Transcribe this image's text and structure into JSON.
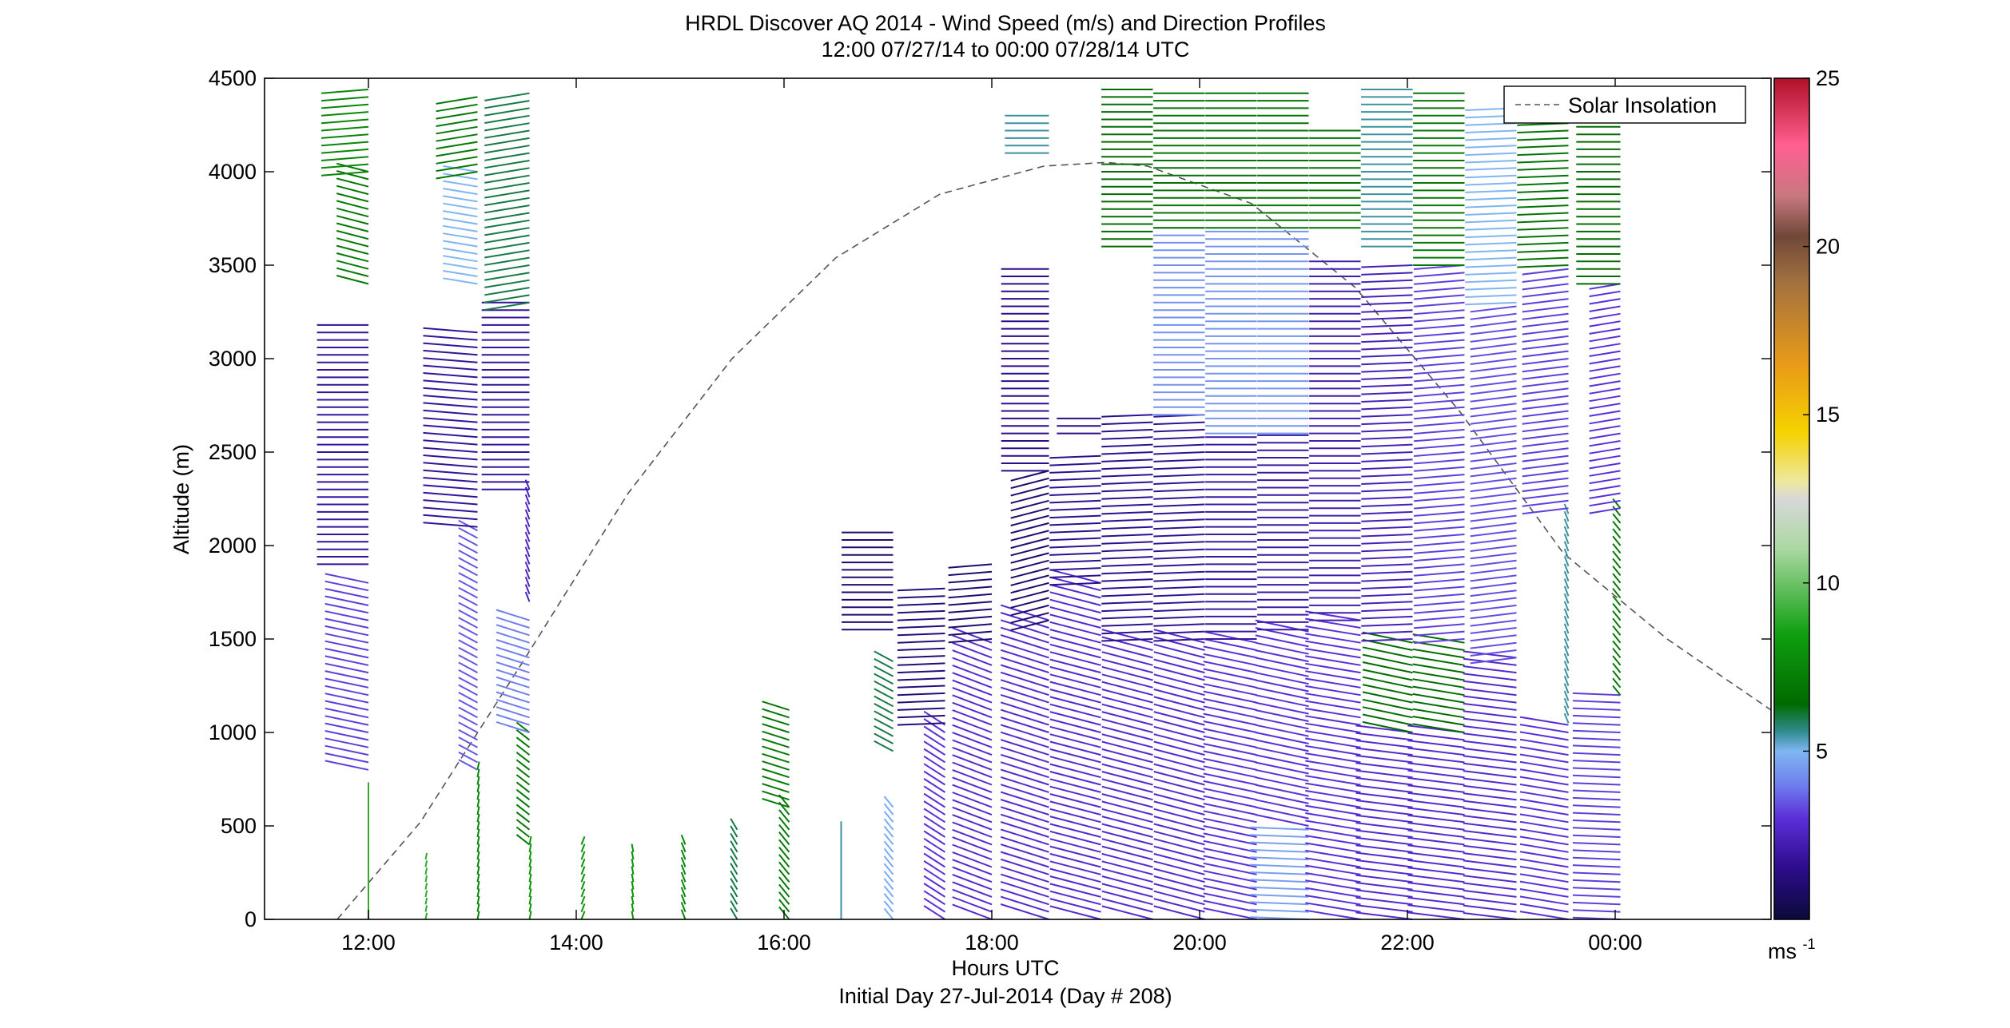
{
  "chart_data": {
    "type": "wind-barb-profile",
    "title": "HRDL Discover AQ 2014 - Wind Speed (m/s) and Direction Profiles",
    "subtitle": "12:00 07/27/14 to 00:00 07/28/14  UTC",
    "xlabel": "Hours UTC",
    "xlabel2": "Initial Day 27-Jul-2014 (Day # 208)",
    "ylabel": "Altitude (m)",
    "xlim_hours": [
      11,
      25.5
    ],
    "ylim": [
      0,
      4500
    ],
    "x_ticks": [
      {
        "hour": 12,
        "label": "12:00"
      },
      {
        "hour": 14,
        "label": "14:00"
      },
      {
        "hour": 16,
        "label": "16:00"
      },
      {
        "hour": 18,
        "label": "18:00"
      },
      {
        "hour": 20,
        "label": "20:00"
      },
      {
        "hour": 22,
        "label": "22:00"
      },
      {
        "hour": 24,
        "label": "00:00"
      }
    ],
    "y_ticks": [
      {
        "value": 0,
        "label": "0"
      },
      {
        "value": 500,
        "label": "500"
      },
      {
        "value": 1000,
        "label": "1000"
      },
      {
        "value": 1500,
        "label": "1500"
      },
      {
        "value": 2000,
        "label": "2000"
      },
      {
        "value": 2500,
        "label": "2500"
      },
      {
        "value": 3000,
        "label": "3000"
      },
      {
        "value": 3500,
        "label": "3500"
      },
      {
        "value": 4000,
        "label": "4000"
      },
      {
        "value": 4500,
        "label": "4500"
      }
    ],
    "legend": {
      "entry": "Solar Insolation",
      "position": "top-right",
      "style": "dashed"
    },
    "colorbar": {
      "unit_base": "ms",
      "unit_exp": "-1",
      "range": [
        0,
        25
      ],
      "tick_values": [
        5,
        10,
        15,
        20,
        25
      ],
      "tick_labels": [
        "5",
        "10",
        "15",
        "20",
        "25"
      ],
      "colors": [
        {
          "v": 0,
          "c": "#0b0a3a"
        },
        {
          "v": 1.5,
          "c": "#2c0c8a"
        },
        {
          "v": 3,
          "c": "#5b2ed8"
        },
        {
          "v": 4,
          "c": "#6f7fee"
        },
        {
          "v": 5,
          "c": "#7fb6f2"
        },
        {
          "v": 5.6,
          "c": "#2e8a8c"
        },
        {
          "v": 6.4,
          "c": "#006a00"
        },
        {
          "v": 8.5,
          "c": "#10a010"
        },
        {
          "v": 11,
          "c": "#aad8a2"
        },
        {
          "v": 12.5,
          "c": "#d8d8d8"
        },
        {
          "v": 13,
          "c": "#eee8a0"
        },
        {
          "v": 14.5,
          "c": "#f5d200"
        },
        {
          "v": 16.5,
          "c": "#e89a18"
        },
        {
          "v": 19,
          "c": "#a07040"
        },
        {
          "v": 20.3,
          "c": "#704838"
        },
        {
          "v": 21.5,
          "c": "#c87880"
        },
        {
          "v": 23,
          "c": "#ff6090"
        },
        {
          "v": 25,
          "c": "#b01028"
        }
      ]
    },
    "solar_insolation": {
      "x_hours": [
        11.7,
        12.5,
        13.5,
        14.5,
        15.5,
        16.5,
        17.5,
        18.5,
        19.1,
        19.5,
        20.5,
        21.5,
        22.5,
        23.5,
        24.5,
        25.5
      ],
      "y": [
        0,
        520,
        1390,
        2280,
        3000,
        3540,
        3880,
        4030,
        4050,
        4030,
        3830,
        3380,
        2720,
        1960,
        1500,
        1120
      ]
    },
    "profile_columns": [
      {
        "hour": 12.0,
        "segments": [
          {
            "z0": 0,
            "z1": 700,
            "speed": 9,
            "dir": 180,
            "len": 0.6
          },
          {
            "z0": 800,
            "z1": 1800,
            "speed": 3.2,
            "dir": 245,
            "len": 1.3
          },
          {
            "z0": 1900,
            "z1": 3200,
            "speed": 1.8,
            "dir": 270,
            "len": 1.4
          },
          {
            "z0": 3400,
            "z1": 4000,
            "speed": 7,
            "dir": 240,
            "len": 1.0
          },
          {
            "z0": 4000,
            "z1": 4450,
            "speed": 7.5,
            "dir": 280,
            "len": 1.3
          }
        ]
      },
      {
        "hour": 12.55,
        "segments": [
          {
            "z0": 0,
            "z1": 350,
            "speed": 9,
            "dir": 175,
            "len": 0.4
          }
        ]
      },
      {
        "hour": 13.05,
        "segments": [
          {
            "z0": 0,
            "z1": 800,
            "speed": 7.5,
            "dir": 175,
            "len": 0.5
          },
          {
            "z0": 800,
            "z1": 2100,
            "speed": 3.5,
            "dir": 220,
            "len": 0.8
          },
          {
            "z0": 2100,
            "z1": 3150,
            "speed": 1.8,
            "dir": 260,
            "len": 1.5
          },
          {
            "z0": 3400,
            "z1": 4000,
            "speed": 5,
            "dir": 250,
            "len": 1.0
          },
          {
            "z0": 4000,
            "z1": 4400,
            "speed": 7,
            "dir": 290,
            "len": 1.2
          }
        ]
      },
      {
        "hour": 13.55,
        "segments": [
          {
            "z0": 0,
            "z1": 400,
            "speed": 8,
            "dir": 175,
            "len": 0.5
          },
          {
            "z0": 400,
            "z1": 1000,
            "speed": 7,
            "dir": 210,
            "len": 0.7
          },
          {
            "z0": 1000,
            "z1": 1600,
            "speed": 4,
            "dir": 235,
            "len": 1.1
          },
          {
            "z0": 1700,
            "z1": 2300,
            "speed": 2.5,
            "dir": 190,
            "len": 0.6
          },
          {
            "z0": 2300,
            "z1": 3300,
            "speed": 1.8,
            "dir": 270,
            "len": 1.3
          },
          {
            "z0": 3300,
            "z1": 4450,
            "speed": 6,
            "dir": 290,
            "len": 1.3
          }
        ]
      },
      {
        "hour": 14.05,
        "segments": [
          {
            "z0": 0,
            "z1": 420,
            "speed": 8,
            "dir": 170,
            "len": 0.5
          }
        ]
      },
      {
        "hour": 14.55,
        "segments": [
          {
            "z0": 0,
            "z1": 380,
            "speed": 8,
            "dir": 185,
            "len": 0.5
          }
        ]
      },
      {
        "hour": 15.05,
        "segments": [
          {
            "z0": 0,
            "z1": 420,
            "speed": 7.5,
            "dir": 190,
            "len": 0.6
          }
        ]
      },
      {
        "hour": 15.55,
        "segments": [
          {
            "z0": 0,
            "z1": 500,
            "speed": 6,
            "dir": 195,
            "len": 0.7
          }
        ]
      },
      {
        "hour": 16.05,
        "segments": [
          {
            "z0": 0,
            "z1": 600,
            "speed": 7,
            "dir": 200,
            "len": 0.8
          },
          {
            "z0": 600,
            "z1": 1150,
            "speed": 7,
            "dir": 235,
            "len": 0.9
          }
        ]
      },
      {
        "hour": 16.55,
        "segments": [
          {
            "z0": 0,
            "z1": 480,
            "speed": 5.5,
            "dir": 180,
            "len": 0.5
          }
        ]
      },
      {
        "hour": 17.05,
        "segments": [
          {
            "z0": 0,
            "z1": 600,
            "speed": 4.8,
            "dir": 200,
            "len": 0.7
          },
          {
            "z0": 900,
            "z1": 1400,
            "speed": 6,
            "dir": 220,
            "len": 0.8
          },
          {
            "z0": 1550,
            "z1": 2100,
            "speed": 1,
            "dir": 270,
            "len": 1.4
          }
        ]
      },
      {
        "hour": 17.55,
        "segments": [
          {
            "z0": 0,
            "z1": 1050,
            "speed": 3,
            "dir": 215,
            "len": 1.0
          },
          {
            "z0": 1050,
            "z1": 1800,
            "speed": 1.2,
            "dir": 275,
            "len": 1.3
          }
        ]
      },
      {
        "hour": 18.0,
        "segments": [
          {
            "z0": 0,
            "z1": 1500,
            "speed": 2.8,
            "dir": 230,
            "len": 1.4
          },
          {
            "z0": 1500,
            "z1": 1900,
            "speed": 1,
            "dir": 280,
            "len": 1.2
          }
        ]
      },
      {
        "hour": 18.55,
        "segments": [
          {
            "z0": 0,
            "z1": 1600,
            "speed": 2.8,
            "dir": 235,
            "len": 1.6
          },
          {
            "z0": 1600,
            "z1": 2400,
            "speed": 1,
            "dir": 300,
            "len": 1.2
          },
          {
            "z0": 2400,
            "z1": 3500,
            "speed": 1.5,
            "dir": 270,
            "len": 1.3
          },
          {
            "z0": 4100,
            "z1": 4300,
            "speed": 5.5,
            "dir": 270,
            "len": 1.2
          }
        ]
      },
      {
        "hour": 19.05,
        "segments": [
          {
            "z0": 0,
            "z1": 1800,
            "speed": 2.8,
            "dir": 240,
            "len": 1.6
          },
          {
            "z0": 1800,
            "z1": 2500,
            "speed": 1.6,
            "dir": 275,
            "len": 1.4
          },
          {
            "z0": 2600,
            "z1": 2700,
            "speed": 1.5,
            "dir": 270,
            "len": 1.2
          }
        ]
      },
      {
        "hour": 19.55,
        "segments": [
          {
            "z0": 0,
            "z1": 1500,
            "speed": 2.8,
            "dir": 240,
            "len": 1.6
          },
          {
            "z0": 1500,
            "z1": 2700,
            "speed": 1.6,
            "dir": 275,
            "len": 1.4
          },
          {
            "z0": 3600,
            "z1": 4450,
            "speed": 6.5,
            "dir": 270,
            "len": 1.4
          }
        ]
      },
      {
        "hour": 20.05,
        "segments": [
          {
            "z0": 0,
            "z1": 1500,
            "speed": 2.8,
            "dir": 240,
            "len": 1.6
          },
          {
            "z0": 1500,
            "z1": 2700,
            "speed": 1.7,
            "dir": 275,
            "len": 1.4
          },
          {
            "z0": 2700,
            "z1": 3700,
            "speed": 4.3,
            "dir": 270,
            "len": 1.4
          },
          {
            "z0": 3700,
            "z1": 4450,
            "speed": 6.8,
            "dir": 270,
            "len": 1.4
          }
        ]
      },
      {
        "hour": 20.55,
        "segments": [
          {
            "z0": 0,
            "z1": 1500,
            "speed": 3.0,
            "dir": 245,
            "len": 1.6
          },
          {
            "z0": 1500,
            "z1": 2600,
            "speed": 2,
            "dir": 270,
            "len": 1.4
          },
          {
            "z0": 2600,
            "z1": 3700,
            "speed": 4.4,
            "dir": 270,
            "len": 1.4
          },
          {
            "z0": 3700,
            "z1": 4450,
            "speed": 6.8,
            "dir": 270,
            "len": 1.4
          }
        ]
      },
      {
        "hour": 21.05,
        "segments": [
          {
            "z0": 0,
            "z1": 500,
            "speed": 4.6,
            "dir": 265,
            "len": 1.6
          },
          {
            "z0": 500,
            "z1": 1550,
            "speed": 3.0,
            "dir": 245,
            "len": 1.6
          },
          {
            "z0": 1550,
            "z1": 2600,
            "speed": 2,
            "dir": 270,
            "len": 1.4
          },
          {
            "z0": 2600,
            "z1": 3700,
            "speed": 4.4,
            "dir": 270,
            "len": 1.4
          },
          {
            "z0": 3700,
            "z1": 4450,
            "speed": 6.8,
            "dir": 270,
            "len": 1.4
          }
        ]
      },
      {
        "hour": 21.55,
        "segments": [
          {
            "z0": 0,
            "z1": 1600,
            "speed": 3.0,
            "dir": 250,
            "len": 1.6
          },
          {
            "z0": 1600,
            "z1": 3550,
            "speed": 2.2,
            "dir": 270,
            "len": 1.4
          },
          {
            "z0": 3700,
            "z1": 4250,
            "speed": 6.8,
            "dir": 270,
            "len": 1.4
          }
        ]
      },
      {
        "hour": 22.05,
        "segments": [
          {
            "z0": 0,
            "z1": 1000,
            "speed": 2.8,
            "dir": 255,
            "len": 1.6
          },
          {
            "z0": 1000,
            "z1": 1500,
            "speed": 6.5,
            "dir": 245,
            "len": 1.5
          },
          {
            "z0": 1500,
            "z1": 3500,
            "speed": 2.4,
            "dir": 275,
            "len": 1.4
          },
          {
            "z0": 3600,
            "z1": 4450,
            "speed": 5.5,
            "dir": 270,
            "len": 1.4
          }
        ]
      },
      {
        "hour": 22.55,
        "segments": [
          {
            "z0": 0,
            "z1": 1000,
            "speed": 2.8,
            "dir": 255,
            "len": 1.6
          },
          {
            "z0": 1000,
            "z1": 1500,
            "speed": 6.5,
            "dir": 250,
            "len": 1.5
          },
          {
            "z0": 1500,
            "z1": 3500,
            "speed": 3.2,
            "dir": 280,
            "len": 1.4
          },
          {
            "z0": 3500,
            "z1": 4450,
            "speed": 7,
            "dir": 270,
            "len": 1.4
          }
        ]
      },
      {
        "hour": 23.05,
        "segments": [
          {
            "z0": 0,
            "z1": 1400,
            "speed": 2.8,
            "dir": 255,
            "len": 1.5
          },
          {
            "z0": 1400,
            "z1": 3300,
            "speed": 3.4,
            "dir": 285,
            "len": 1.3
          },
          {
            "z0": 3300,
            "z1": 4350,
            "speed": 5,
            "dir": 275,
            "len": 1.4
          }
        ]
      },
      {
        "hour": 23.55,
        "segments": [
          {
            "z0": 0,
            "z1": 1050,
            "speed": 3.0,
            "dir": 250,
            "len": 1.4
          },
          {
            "z0": 1050,
            "z1": 2200,
            "speed": 5.5,
            "dir": 190,
            "len": 0.6
          },
          {
            "z0": 2200,
            "z1": 3500,
            "speed": 3.2,
            "dir": 285,
            "len": 1.3
          },
          {
            "z0": 3500,
            "z1": 4450,
            "speed": 6.8,
            "dir": 275,
            "len": 1.4
          }
        ]
      },
      {
        "hour": 24.05,
        "segments": [
          {
            "z0": 0,
            "z1": 1200,
            "speed": 3.2,
            "dir": 265,
            "len": 1.3
          },
          {
            "z0": 1200,
            "z1": 2200,
            "speed": 7,
            "dir": 200,
            "len": 0.6
          },
          {
            "z0": 2200,
            "z1": 3400,
            "speed": 3,
            "dir": 290,
            "len": 0.9
          },
          {
            "z0": 3400,
            "z1": 4300,
            "speed": 6.5,
            "dir": 270,
            "len": 1.2
          }
        ]
      }
    ]
  }
}
